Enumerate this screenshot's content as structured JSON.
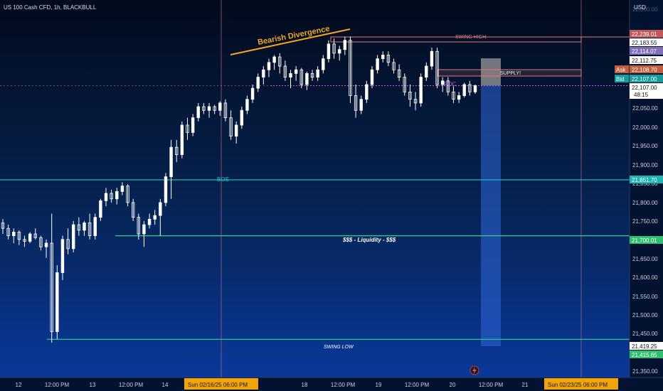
{
  "symbol_title": "US 100 Cash CFD, 1h, BLACKBULL",
  "currency": "USD",
  "colors": {
    "bull": "#ffffff",
    "bear": "#ffffff",
    "bos": "#22c7c7",
    "liquidity": "#35d07f",
    "swing": "#e07a7a",
    "divergence": "#f5a623",
    "poc": "#c85ec8",
    "target": "#2f66d8",
    "gray_box": "#9a9a9a",
    "ask": "#c0603e",
    "bid": "#1a9b9b",
    "time_badge": "#f0a30a"
  },
  "axis": {
    "price_ticks": [
      "22,300.00",
      "22,050.00",
      "22,000.00",
      "21,950.00",
      "21,900.00",
      "21,850.00",
      "21,800.00",
      "21,750.00",
      "21,700.00",
      "21,650.00",
      "21,600.00",
      "21,550.00",
      "21,500.00",
      "21,450.00",
      "21,400.00",
      "21,350.00"
    ],
    "time_ticks": [
      "12",
      "12:00 PM",
      "13",
      "12:00 PM",
      "14",
      "18",
      "12:00 PM",
      "19",
      "12:00 PM",
      "20",
      "12:00 PM",
      "21"
    ],
    "time_badge_1": "Sun 02/16/25   06:00 PM",
    "time_badge_2": "Sun 02/23/25   06:00 PM"
  },
  "price_labels": {
    "swing_high": "22,239.01",
    "p2": "22,183.55",
    "p3": "22,114.07",
    "p4": "22,112.75",
    "ask_label": "Ask",
    "ask": "22,108.70",
    "bid_label": "Bid",
    "bid": "22,107.00",
    "last": "22,107.00",
    "countdown": "48:15",
    "bos": "21,851.70",
    "liquidity": "21,700.01",
    "swing_low": "21,419.25",
    "swing_low_2": "21,415.65"
  },
  "annotations": {
    "bearish_divergence": "Bearish Divergence",
    "swing_high": "SWING HIGH",
    "supply": "SUPPLY!",
    "poc": "POC",
    "bos": "BOS",
    "liquidity": "$$$ - Liquidity - $$$",
    "swing_low": "SWING LOW"
  },
  "chart_data": {
    "type": "candlestick",
    "title": "US 100 Cash CFD, 1h, BLACKBULL",
    "ylim": [
      21335,
      22320
    ],
    "levels": {
      "swing_high": 22239.01,
      "supply_top": 22114.07,
      "supply_bottom": 22098,
      "poc": 22107.0,
      "bos": 21851.7,
      "liquidity": 21700.01,
      "swing_low": 21419.25
    },
    "candles": [
      [
        21735,
        21745,
        21705,
        21720
      ],
      [
        21720,
        21730,
        21690,
        21700
      ],
      [
        21700,
        21720,
        21680,
        21710
      ],
      [
        21710,
        21715,
        21675,
        21690
      ],
      [
        21690,
        21700,
        21670,
        21685
      ],
      [
        21685,
        21710,
        21680,
        21705
      ],
      [
        21705,
        21720,
        21690,
        21695
      ],
      [
        21695,
        21700,
        21660,
        21670
      ],
      [
        21670,
        21690,
        21640,
        21680
      ],
      [
        21680,
        21760,
        21410,
        21440
      ],
      [
        21440,
        21620,
        21420,
        21600
      ],
      [
        21600,
        21700,
        21580,
        21690
      ],
      [
        21690,
        21720,
        21650,
        21665
      ],
      [
        21665,
        21740,
        21655,
        21730
      ],
      [
        21730,
        21750,
        21700,
        21715
      ],
      [
        21715,
        21740,
        21700,
        21735
      ],
      [
        21735,
        21760,
        21690,
        21700
      ],
      [
        21700,
        21760,
        21690,
        21750
      ],
      [
        21750,
        21800,
        21740,
        21795
      ],
      [
        21795,
        21830,
        21780,
        21815
      ],
      [
        21815,
        21825,
        21790,
        21800
      ],
      [
        21800,
        21830,
        21785,
        21820
      ],
      [
        21820,
        21845,
        21810,
        21835
      ],
      [
        21835,
        21840,
        21780,
        21790
      ],
      [
        21790,
        21800,
        21740,
        21750
      ],
      [
        21750,
        21760,
        21690,
        21705
      ],
      [
        21705,
        21740,
        21670,
        21730
      ],
      [
        21730,
        21760,
        21720,
        21745
      ],
      [
        21745,
        21770,
        21730,
        21755
      ],
      [
        21755,
        21800,
        21700,
        21790
      ],
      [
        21790,
        21870,
        21780,
        21860
      ],
      [
        21860,
        21960,
        21800,
        21940
      ],
      [
        21940,
        21960,
        21900,
        21920
      ],
      [
        21920,
        22010,
        21910,
        22000
      ],
      [
        22000,
        22020,
        21960,
        21980
      ],
      [
        21980,
        22030,
        21970,
        22020
      ],
      [
        22020,
        22060,
        22010,
        22050
      ],
      [
        22050,
        22060,
        22030,
        22040
      ],
      [
        22040,
        22060,
        22020,
        22050
      ],
      [
        22050,
        22055,
        22030,
        22040
      ],
      [
        22040,
        22065,
        22025,
        22060
      ],
      [
        22060,
        22070,
        22010,
        22020
      ],
      [
        22020,
        22040,
        21960,
        21970
      ],
      [
        21970,
        22010,
        21950,
        22000
      ],
      [
        22000,
        22050,
        21990,
        22040
      ],
      [
        22040,
        22080,
        22030,
        22070
      ],
      [
        22070,
        22110,
        22060,
        22100
      ],
      [
        22100,
        22140,
        22090,
        22130
      ],
      [
        22130,
        22160,
        22110,
        22150
      ],
      [
        22150,
        22180,
        22130,
        22170
      ],
      [
        22170,
        22190,
        22150,
        22185
      ],
      [
        22185,
        22195,
        22140,
        22160
      ],
      [
        22160,
        22175,
        22120,
        22130
      ],
      [
        22130,
        22150,
        22100,
        22140
      ],
      [
        22140,
        22160,
        22120,
        22150
      ],
      [
        22150,
        22155,
        22100,
        22110
      ],
      [
        22110,
        22145,
        22095,
        22140
      ],
      [
        22140,
        22150,
        22120,
        22130
      ],
      [
        22130,
        22160,
        22120,
        22150
      ],
      [
        22150,
        22190,
        22140,
        22180
      ],
      [
        22180,
        22230,
        22170,
        22220
      ],
      [
        22220,
        22235,
        22180,
        22195
      ],
      [
        22195,
        22215,
        22175,
        22205
      ],
      [
        22205,
        22240,
        22190,
        22230
      ],
      [
        22230,
        22240,
        22060,
        22080
      ],
      [
        22080,
        22110,
        22020,
        22040
      ],
      [
        22040,
        22080,
        22030,
        22070
      ],
      [
        22070,
        22120,
        22060,
        22110
      ],
      [
        22110,
        22160,
        22100,
        22150
      ],
      [
        22150,
        22190,
        22140,
        22180
      ],
      [
        22180,
        22200,
        22170,
        22190
      ],
      [
        22190,
        22200,
        22160,
        22170
      ],
      [
        22170,
        22180,
        22140,
        22150
      ],
      [
        22150,
        22165,
        22120,
        22130
      ],
      [
        22130,
        22140,
        22080,
        22090
      ],
      [
        22090,
        22110,
        22050,
        22070
      ],
      [
        22070,
        22090,
        22040,
        22060
      ],
      [
        22060,
        22140,
        22050,
        22130
      ],
      [
        22130,
        22170,
        22120,
        22160
      ],
      [
        22160,
        22210,
        22150,
        22200
      ],
      [
        22200,
        22210,
        22100,
        22110
      ],
      [
        22110,
        22130,
        22090,
        22120
      ],
      [
        22120,
        22130,
        22080,
        22090
      ],
      [
        22090,
        22105,
        22060,
        22070
      ],
      [
        22070,
        22090,
        22060,
        22080
      ],
      [
        22080,
        22115,
        22075,
        22110
      ],
      [
        22110,
        22120,
        22080,
        22090
      ],
      [
        22090,
        22110,
        22085,
        22107
      ]
    ]
  }
}
